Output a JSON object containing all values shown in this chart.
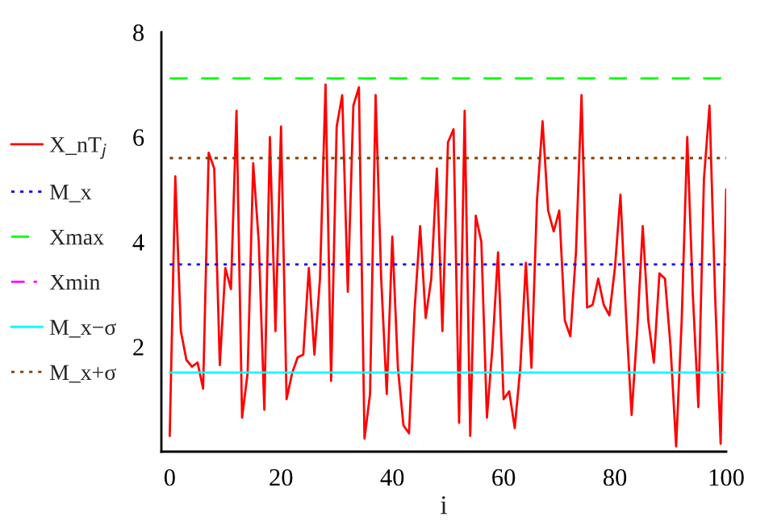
{
  "chart_data": {
    "type": "line",
    "xlabel": "i",
    "xlim": [
      -1.5,
      100
    ],
    "xticks": [
      0,
      20,
      40,
      60,
      80,
      100
    ],
    "ylim": [
      0,
      8
    ],
    "yticks": [
      2,
      4,
      6,
      8
    ],
    "grid": false,
    "legend": "left",
    "marker": "none",
    "series": [
      {
        "name": "X_nT$_{j}$",
        "color": "#ff0000",
        "line_style": "solid",
        "x": [
          0,
          1,
          2,
          3,
          4,
          5,
          6,
          7,
          8,
          9,
          10,
          11,
          12,
          13,
          14,
          15,
          16,
          17,
          18,
          19,
          20,
          21,
          22,
          23,
          24,
          25,
          26,
          27,
          28,
          29,
          30,
          31,
          32,
          33,
          34,
          35,
          36,
          37,
          38,
          39,
          40,
          41,
          42,
          43,
          44,
          45,
          46,
          47,
          48,
          49,
          50,
          51,
          52,
          53,
          54,
          55,
          56,
          57,
          58,
          59,
          60,
          61,
          62,
          63,
          64,
          65,
          66,
          67,
          68,
          69,
          70,
          71,
          72,
          73,
          74,
          75,
          76,
          77,
          78,
          79,
          80,
          81,
          82,
          83,
          84,
          85,
          86,
          87,
          88,
          89,
          90,
          91,
          92,
          93,
          94,
          95,
          96,
          97,
          98,
          99,
          100
        ],
        "values": [
          0.3,
          5.25,
          2.3,
          1.75,
          1.62,
          1.7,
          1.2,
          5.7,
          5.4,
          1.65,
          3.5,
          3.1,
          6.5,
          0.65,
          1.5,
          5.5,
          4.0,
          0.8,
          6.0,
          2.3,
          6.2,
          1.0,
          1.5,
          1.8,
          1.85,
          3.5,
          1.85,
          3.3,
          7.0,
          1.35,
          6.2,
          6.8,
          3.05,
          6.6,
          6.95,
          0.25,
          1.1,
          6.8,
          3.3,
          1.1,
          4.1,
          1.6,
          0.5,
          0.35,
          2.7,
          4.3,
          2.55,
          3.3,
          5.4,
          2.3,
          5.9,
          6.15,
          0.55,
          6.5,
          0.3,
          4.5,
          4.0,
          0.65,
          2.0,
          3.8,
          1.0,
          1.15,
          0.45,
          1.6,
          3.6,
          1.6,
          4.8,
          6.3,
          4.6,
          4.2,
          4.6,
          2.5,
          2.2,
          3.8,
          6.8,
          2.75,
          2.8,
          3.3,
          2.8,
          2.6,
          3.5,
          4.9,
          2.6,
          0.7,
          2.3,
          4.3,
          2.5,
          1.7,
          3.4,
          3.3,
          2.0,
          0.1,
          2.5,
          6.0,
          3.0,
          0.85,
          5.2,
          6.6,
          3.0,
          0.15,
          5.0
        ]
      },
      {
        "name": "M_x",
        "color": "#0000ff",
        "line_style": "dotted",
        "x": [
          0,
          100
        ],
        "values": [
          3.57,
          3.57
        ]
      },
      {
        "name": "Xmax",
        "color": "#00ff00",
        "line_style": "dashed",
        "x": [
          0,
          100
        ],
        "values": [
          7.12,
          7.12
        ]
      },
      {
        "name": "Xmin",
        "color": "#ff00ff",
        "line_style": "dashdot"
      },
      {
        "name": "M_x−σ",
        "color": "#00ffff",
        "line_style": "solid",
        "x": [
          0,
          100
        ],
        "values": [
          1.51,
          1.51
        ]
      },
      {
        "name": "M_x+σ",
        "color": "#804000",
        "line_style": "dotted",
        "x": [
          0,
          100
        ],
        "values": [
          5.6,
          5.6
        ]
      }
    ]
  }
}
